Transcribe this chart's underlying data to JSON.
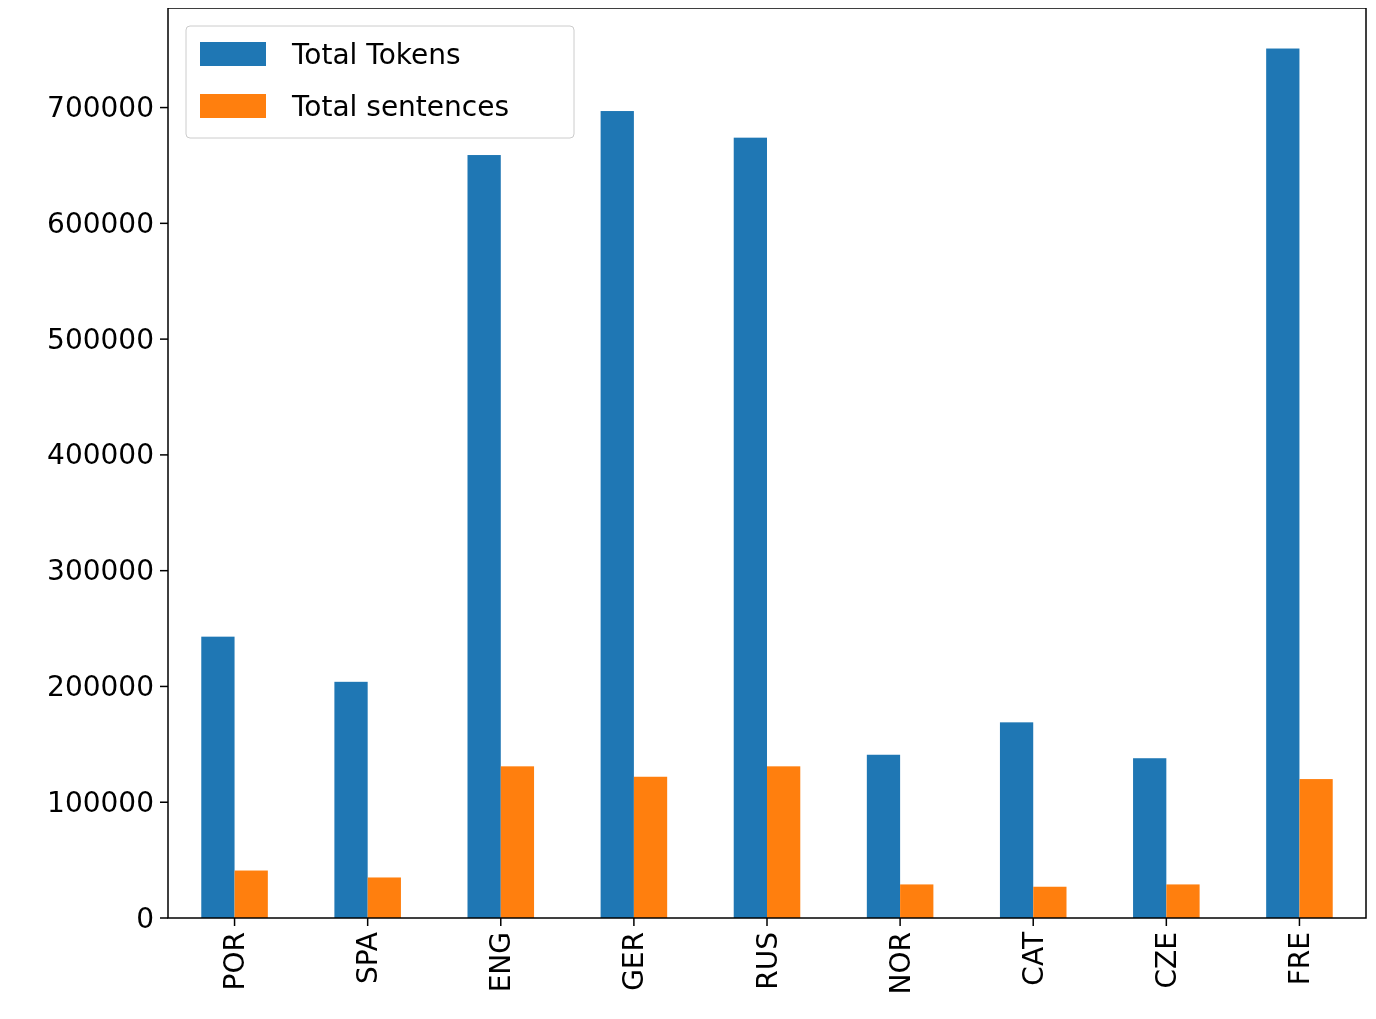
{
  "chart_data": {
    "type": "bar",
    "categories": [
      "POR",
      "SPA",
      "ENG",
      "GER",
      "RUS",
      "NOR",
      "CAT",
      "CZE",
      "FRE"
    ],
    "series": [
      {
        "name": "Total Tokens",
        "color": "#1f77b4",
        "values": [
          243000,
          204000,
          659000,
          697000,
          674000,
          141000,
          169000,
          138000,
          751000
        ]
      },
      {
        "name": "Total sentences",
        "color": "#ff7f0e",
        "values": [
          41000,
          35000,
          131000,
          122000,
          131000,
          29000,
          27000,
          29000,
          120000
        ]
      }
    ],
    "ylim": [
      0,
      786000
    ],
    "yticks": [
      0,
      100000,
      200000,
      300000,
      400000,
      500000,
      600000,
      700000
    ],
    "grid": false,
    "legend": "top left"
  }
}
